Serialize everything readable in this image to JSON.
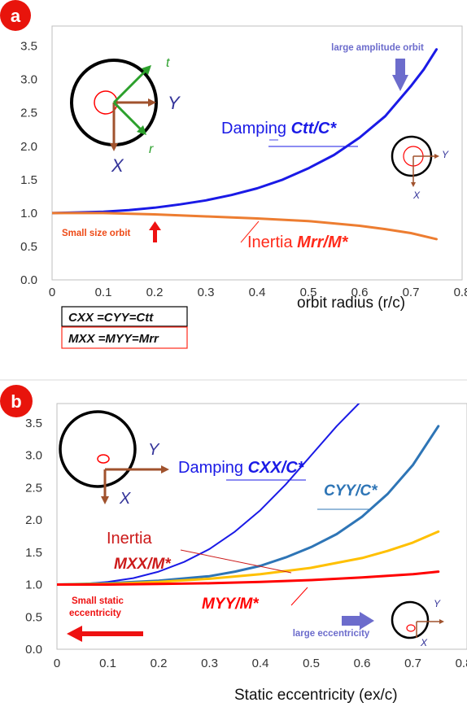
{
  "colors": {
    "badge": "#e8140c",
    "damping": "#1a1ae6",
    "inertia_a": "#ed7d31",
    "cyy": "#2e75b6",
    "yellow_series": "#ffc000",
    "red_series": "#ff0000",
    "arrow_blue": "#6c6ccc",
    "arrow_red": "#ee1111",
    "brown": "#a0522d",
    "green": "#2ca02c"
  },
  "panel_a": {
    "badge": "a",
    "xlabel": "orbit radius (r/c)",
    "annotations": {
      "large_amplitude": "large amplitude orbit",
      "small_size": "Small size orbit",
      "damping_prefix": "Damping ",
      "damping_expr": "Ctt/C*",
      "inertia_prefix": "Inertia ",
      "inertia_expr": "Mrr/M*",
      "axis_t": "t",
      "axis_r": "r",
      "axis_Y": "Y",
      "axis_X": "X",
      "small_Y": "Y",
      "small_X": "X"
    },
    "legend": {
      "row1": "CXX =CYY=Ctt",
      "row2": "MXX =MYY=Mrr"
    }
  },
  "panel_b": {
    "badge": "b",
    "xlabel": "Static eccentricity (ex/c)",
    "annotations": {
      "damping_prefix": "Damping ",
      "damping_expr": "CXX/C*",
      "cyy_expr": "CYY/C*",
      "inertia_word": "Inertia",
      "inertia_mxx": "MXX/M*",
      "inertia_myy": "MYY/M*",
      "small_static_1": "Small static",
      "small_static_2": "eccentricity",
      "large_ecc": "large eccentricity",
      "axis_Y": "Y",
      "axis_X": "X",
      "small_Y": "Y",
      "small_X": "X"
    }
  },
  "chart_data": [
    {
      "type": "line",
      "x_ticks": [
        "0",
        "0.1",
        "0.2",
        "0.3",
        "0.4",
        "0.5",
        "0.6",
        "0.7",
        "0.8"
      ],
      "y_ticks": [
        "0.0",
        "0.5",
        "1.0",
        "1.5",
        "2.0",
        "2.5",
        "3.0",
        "3.5"
      ],
      "xlim": [
        0,
        0.8
      ],
      "ylim": [
        0,
        3.8
      ],
      "xlabel": "orbit radius (r/c)",
      "grid": false,
      "series": [
        {
          "name": "Damping Ctt/C*",
          "color": "#1a1ae6",
          "x": [
            0,
            0.05,
            0.1,
            0.15,
            0.2,
            0.25,
            0.3,
            0.35,
            0.4,
            0.45,
            0.5,
            0.55,
            0.6,
            0.65,
            0.7,
            0.725,
            0.75
          ],
          "y": [
            1.0,
            1.01,
            1.02,
            1.045,
            1.08,
            1.13,
            1.19,
            1.27,
            1.37,
            1.5,
            1.67,
            1.87,
            2.13,
            2.45,
            2.9,
            3.15,
            3.45
          ]
        },
        {
          "name": "Inertia Mrr/M*",
          "color": "#ed7d31",
          "x": [
            0,
            0.1,
            0.2,
            0.3,
            0.4,
            0.5,
            0.6,
            0.65,
            0.7,
            0.75
          ],
          "y": [
            1.0,
            1.0,
            0.98,
            0.95,
            0.92,
            0.88,
            0.81,
            0.76,
            0.7,
            0.61
          ]
        }
      ]
    },
    {
      "type": "line",
      "x_ticks": [
        "0",
        "0.1",
        "0.2",
        "0.3",
        "0.4",
        "0.5",
        "0.6",
        "0.7",
        "0.8"
      ],
      "y_ticks": [
        "0.0",
        "0.5",
        "1.0",
        "1.5",
        "2.0",
        "2.5",
        "3.0",
        "3.5"
      ],
      "xlim": [
        0,
        0.8
      ],
      "ylim": [
        0,
        3.8
      ],
      "xlabel": "Static eccentricity (ex/c)",
      "grid": false,
      "series": [
        {
          "name": "Damping CXX/C*",
          "color": "#1a1ae6",
          "x": [
            0,
            0.05,
            0.1,
            0.15,
            0.2,
            0.25,
            0.3,
            0.35,
            0.4,
            0.45,
            0.5,
            0.55,
            0.6,
            0.62
          ],
          "y": [
            1.0,
            1.01,
            1.04,
            1.1,
            1.2,
            1.35,
            1.55,
            1.82,
            2.15,
            2.55,
            3.0,
            3.45,
            3.85,
            4.1
          ]
        },
        {
          "name": "CYY/C*",
          "color": "#2e75b6",
          "x": [
            0,
            0.1,
            0.2,
            0.3,
            0.35,
            0.4,
            0.45,
            0.5,
            0.55,
            0.6,
            0.65,
            0.7,
            0.75
          ],
          "y": [
            1.0,
            1.02,
            1.06,
            1.13,
            1.2,
            1.29,
            1.42,
            1.58,
            1.78,
            2.05,
            2.4,
            2.85,
            3.45
          ]
        },
        {
          "color": "#ffc000",
          "x": [
            0,
            0.1,
            0.2,
            0.3,
            0.4,
            0.5,
            0.6,
            0.65,
            0.7,
            0.75
          ],
          "y": [
            1.0,
            1.01,
            1.04,
            1.09,
            1.16,
            1.26,
            1.41,
            1.52,
            1.65,
            1.82
          ]
        },
        {
          "name": "MYY/M*",
          "color": "#ff0000",
          "x": [
            0,
            0.1,
            0.2,
            0.3,
            0.4,
            0.5,
            0.6,
            0.7,
            0.75
          ],
          "y": [
            1.0,
            1.0,
            1.01,
            1.02,
            1.04,
            1.07,
            1.11,
            1.16,
            1.2
          ]
        }
      ]
    }
  ]
}
